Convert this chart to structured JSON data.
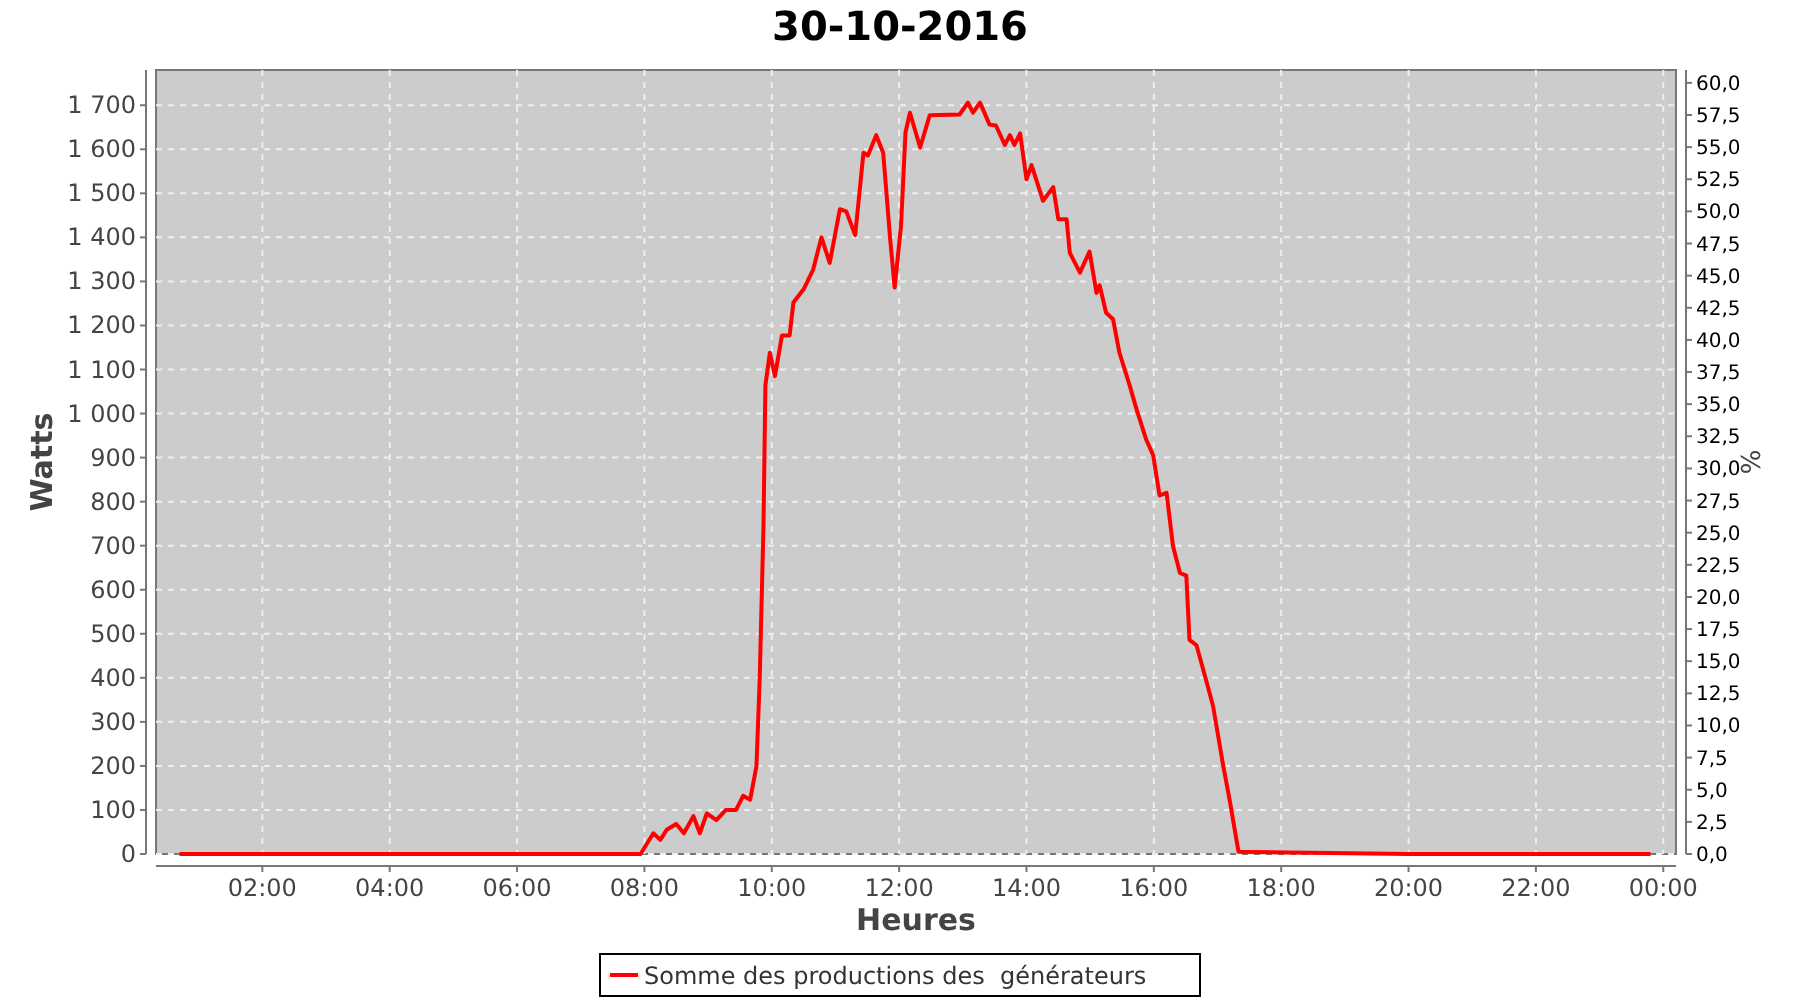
{
  "chart_data": {
    "type": "line",
    "title": "30-10-2016",
    "xlabel": "Heures",
    "ylabel": "Watts",
    "y2label": "%",
    "xlim": [
      0.33,
      24.2
    ],
    "ylim": [
      0,
      1780
    ],
    "y2lim": [
      0,
      61.0
    ],
    "xticks": [
      {
        "value": 2,
        "label": "02:00"
      },
      {
        "value": 4,
        "label": "04:00"
      },
      {
        "value": 6,
        "label": "06:00"
      },
      {
        "value": 8,
        "label": "08:00"
      },
      {
        "value": 10,
        "label": "10:00"
      },
      {
        "value": 12,
        "label": "12:00"
      },
      {
        "value": 14,
        "label": "14:00"
      },
      {
        "value": 16,
        "label": "16:00"
      },
      {
        "value": 18,
        "label": "18:00"
      },
      {
        "value": 20,
        "label": "20:00"
      },
      {
        "value": 22,
        "label": "22:00"
      },
      {
        "value": 24,
        "label": "00:00"
      }
    ],
    "yticks": [
      0,
      100,
      200,
      300,
      400,
      500,
      600,
      700,
      800,
      900,
      {
        "value": 1000,
        "label": "1 000"
      },
      {
        "value": 1100,
        "label": "1 100"
      },
      {
        "value": 1200,
        "label": "1 200"
      },
      {
        "value": 1300,
        "label": "1 300"
      },
      {
        "value": 1400,
        "label": "1 400"
      },
      {
        "value": 1500,
        "label": "1 500"
      },
      {
        "value": 1600,
        "label": "1 600"
      },
      {
        "value": 1700,
        "label": "1 700"
      }
    ],
    "y2ticks": [
      {
        "value": 0,
        "label": "0,0"
      },
      {
        "value": 2.5,
        "label": "2,5"
      },
      {
        "value": 5,
        "label": "5,0"
      },
      {
        "value": 7.5,
        "label": "7,5"
      },
      {
        "value": 10,
        "label": "10,0"
      },
      {
        "value": 12.5,
        "label": "12,5"
      },
      {
        "value": 15,
        "label": "15,0"
      },
      {
        "value": 17.5,
        "label": "17,5"
      },
      {
        "value": 20,
        "label": "20,0"
      },
      {
        "value": 22.5,
        "label": "22,5"
      },
      {
        "value": 25,
        "label": "25,0"
      },
      {
        "value": 27.5,
        "label": "27,5"
      },
      {
        "value": 30,
        "label": "30,0"
      },
      {
        "value": 32.5,
        "label": "32,5"
      },
      {
        "value": 35,
        "label": "35,0"
      },
      {
        "value": 37.5,
        "label": "37,5"
      },
      {
        "value": 40,
        "label": "40,0"
      },
      {
        "value": 42.5,
        "label": "42,5"
      },
      {
        "value": 45,
        "label": "45,0"
      },
      {
        "value": 47.5,
        "label": "47,5"
      },
      {
        "value": 50,
        "label": "50,0"
      },
      {
        "value": 52.5,
        "label": "52,5"
      },
      {
        "value": 55,
        "label": "55,0"
      },
      {
        "value": 57.5,
        "label": "57,5"
      },
      {
        "value": 60,
        "label": "60,0"
      }
    ],
    "grid": true,
    "legend": "bottom",
    "line_style": "solid",
    "series": [
      {
        "name": "Somme des productions des  générateurs",
        "color": "#ff0000",
        "x": [
          0.7,
          7.0,
          7.94,
          8.14,
          8.25,
          8.35,
          8.5,
          8.62,
          8.77,
          8.87,
          8.98,
          9.13,
          9.28,
          9.44,
          9.55,
          9.66,
          9.76,
          9.81,
          9.87,
          9.9,
          9.97,
          10.05,
          10.16,
          10.28,
          10.34,
          10.5,
          10.65,
          10.78,
          10.91,
          11.07,
          11.17,
          11.31,
          11.44,
          11.51,
          11.64,
          11.75,
          11.86,
          11.93,
          12.03,
          12.1,
          12.17,
          12.33,
          12.48,
          12.95,
          13.08,
          13.16,
          13.27,
          13.42,
          13.52,
          13.66,
          13.74,
          13.81,
          13.9,
          14.0,
          14.08,
          14.26,
          14.42,
          14.5,
          14.63,
          14.68,
          14.84,
          14.99,
          15.1,
          15.15,
          15.25,
          15.36,
          15.46,
          15.62,
          15.73,
          15.88,
          15.99,
          16.09,
          16.2,
          16.3,
          16.41,
          16.51,
          16.56,
          16.67,
          16.82,
          16.93,
          17.09,
          17.19,
          17.33,
          20.0,
          23.8
        ],
        "values": [
          0,
          0,
          0,
          47,
          32,
          55,
          68,
          47,
          86,
          47,
          92,
          77,
          100,
          100,
          132,
          123,
          200,
          395,
          745,
          1064,
          1138,
          1085,
          1177,
          1177,
          1252,
          1282,
          1327,
          1400,
          1342,
          1464,
          1459,
          1405,
          1592,
          1586,
          1632,
          1592,
          1395,
          1286,
          1427,
          1638,
          1683,
          1604,
          1677,
          1679,
          1706,
          1683,
          1706,
          1656,
          1654,
          1610,
          1632,
          1610,
          1636,
          1532,
          1564,
          1483,
          1514,
          1441,
          1441,
          1365,
          1320,
          1368,
          1274,
          1291,
          1229,
          1214,
          1138,
          1064,
          1009,
          941,
          905,
          814,
          820,
          700,
          638,
          632,
          486,
          474,
          395,
          336,
          200,
          123,
          5,
          0,
          0
        ]
      }
    ]
  }
}
